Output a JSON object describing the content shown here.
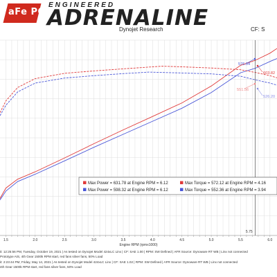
{
  "header": {
    "logo_text": "aFe POWER",
    "brand_top": "ENGINEERED",
    "brand_main": "ADRENALINE",
    "subtitle": "Dynojet Research",
    "cf": "CF: S"
  },
  "colors": {
    "red": "#e03a3a",
    "red_light": "#f08a8a",
    "blue": "#4a57d8",
    "blue_light": "#8a8ee6",
    "grid": "#dddddd"
  },
  "chart_data": {
    "type": "line",
    "title": "",
    "xlabel": "Engine RPM (rpmx1000)",
    "ylabel": "",
    "xlim": [
      1.4,
      6.12
    ],
    "ylim": [
      0,
      660
    ],
    "x_ticks": [
      "1.5",
      "2.0",
      "2.5",
      "3.0",
      "3.5",
      "4.0",
      "4.5",
      "5.0",
      "5.5",
      "6.0"
    ],
    "grid": true,
    "legend_position": "center-right",
    "series": [
      {
        "name": "Max Power = 631.78 at Engine RPM = 6.12",
        "style": "solid",
        "color": "red",
        "x": [
          1.4,
          1.5,
          1.7,
          2.0,
          2.5,
          3.0,
          3.5,
          4.0,
          4.5,
          5.0,
          5.5,
          5.75,
          6.0,
          6.12
        ],
        "y": [
          125,
          160,
          190,
          215,
          262,
          310,
          357,
          402,
          448,
          505,
          575,
          592,
          616,
          632
        ]
      },
      {
        "name": "Max Power = 598.32 at Engine RPM = 6.12",
        "style": "solid",
        "color": "blue",
        "x": [
          1.4,
          1.5,
          1.7,
          2.0,
          2.5,
          3.0,
          3.5,
          4.0,
          4.5,
          5.0,
          5.5,
          5.75,
          6.0,
          6.12
        ],
        "y": [
          120,
          150,
          182,
          207,
          252,
          298,
          342,
          386,
          430,
          483,
          550,
          565,
          588,
          598
        ]
      },
      {
        "name": "Max Torque = 572.12 at Engine RPM = 4.16",
        "style": "dashed",
        "color": "red",
        "x": [
          1.4,
          1.5,
          1.7,
          2.0,
          2.5,
          3.0,
          3.5,
          4.0,
          4.16,
          4.5,
          5.0,
          5.5,
          5.75,
          6.0,
          6.12
        ],
        "y": [
          415,
          455,
          500,
          530,
          548,
          556,
          563,
          570,
          572,
          570,
          566,
          560,
          551,
          540,
          533
        ]
      },
      {
        "name": "Max Torque = 552.36 at Engine RPM = 3.94",
        "style": "dashed",
        "color": "blue",
        "x": [
          1.4,
          1.5,
          1.7,
          2.0,
          2.5,
          3.0,
          3.5,
          3.94,
          4.5,
          5.0,
          5.5,
          5.75,
          6.0,
          6.12
        ],
        "y": [
          405,
          440,
          485,
          515,
          532,
          540,
          547,
          552,
          549,
          546,
          538,
          526,
          515,
          508
        ]
      }
    ],
    "annotations": [
      {
        "text": "576.04",
        "color": "blue"
      },
      {
        "text": "603.82",
        "color": "red"
      },
      {
        "text": "551.56",
        "color": "red_light"
      },
      {
        "text": "526.20",
        "color": "blue_light"
      }
    ],
    "cursor": {
      "x": 5.75,
      "label": "5.75"
    }
  },
  "footer": {
    "lines": [
      "it: 12:25:56 PM, Tuesday, October 19, 2021 | As tested on Dynojet Model 424xLC Linx | CF: SAE 1.00 | RPM: SW Defined | AFR Source: Dynoware RT WB | Linx not connected",
      "Prototype AIS, 4th Gear 1500k RPM start, red fans silver fans, 50% Load",
      "it: 2:23:44 PM, Friday, May 14, 2021 | As tested on Dynojet Model 424xLC Linx | CF: SAE 1.02 | RPM: SW Defined | AFR Source: Dynoware RT WB | Linx not connected",
      "4th Gear 1500k RPM start, red fans silver fans, 50% Load"
    ]
  }
}
